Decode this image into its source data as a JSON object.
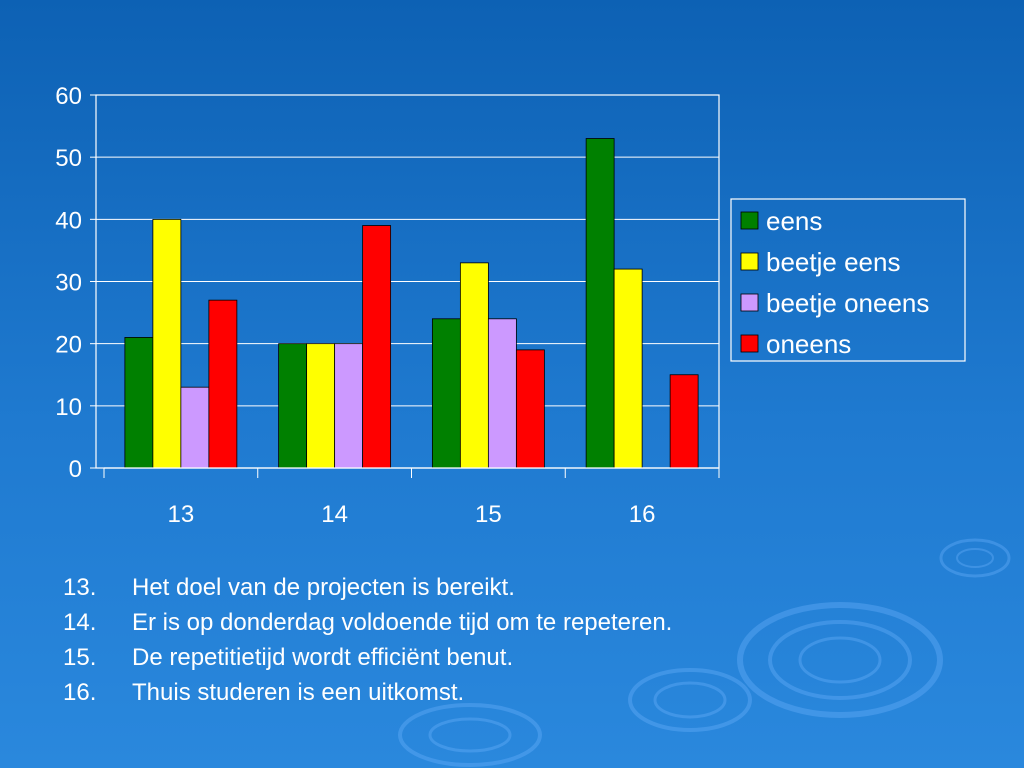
{
  "chart_data": {
    "type": "bar",
    "categories": [
      "13",
      "14",
      "15",
      "16"
    ],
    "series": [
      {
        "name": "eens",
        "color": "#008000",
        "values": [
          21,
          20,
          24,
          53
        ]
      },
      {
        "name": "beetje eens",
        "color": "#ffff00",
        "values": [
          40,
          20,
          33,
          32
        ]
      },
      {
        "name": "beetje oneens",
        "color": "#cc99ff",
        "values": [
          13,
          20,
          24,
          0
        ]
      },
      {
        "name": "oneens",
        "color": "#ff0000",
        "values": [
          27,
          39,
          19,
          15
        ]
      }
    ],
    "yticks": [
      "0",
      "10",
      "20",
      "30",
      "40",
      "50",
      "60"
    ],
    "ylim": [
      0,
      60
    ],
    "grid": true,
    "legend_position": "right",
    "title": "",
    "xlabel": "",
    "ylabel": ""
  },
  "notes": [
    {
      "number": "13.",
      "text": "Het doel van de projecten is bereikt."
    },
    {
      "number": "14.",
      "text": "Er is op donderdag voldoende tijd om te repeteren."
    },
    {
      "number": "15.",
      "text": "De repetitietijd wordt efficiënt benut."
    },
    {
      "number": "16.",
      "text": "Thuis studeren is een uitkomst."
    }
  ]
}
